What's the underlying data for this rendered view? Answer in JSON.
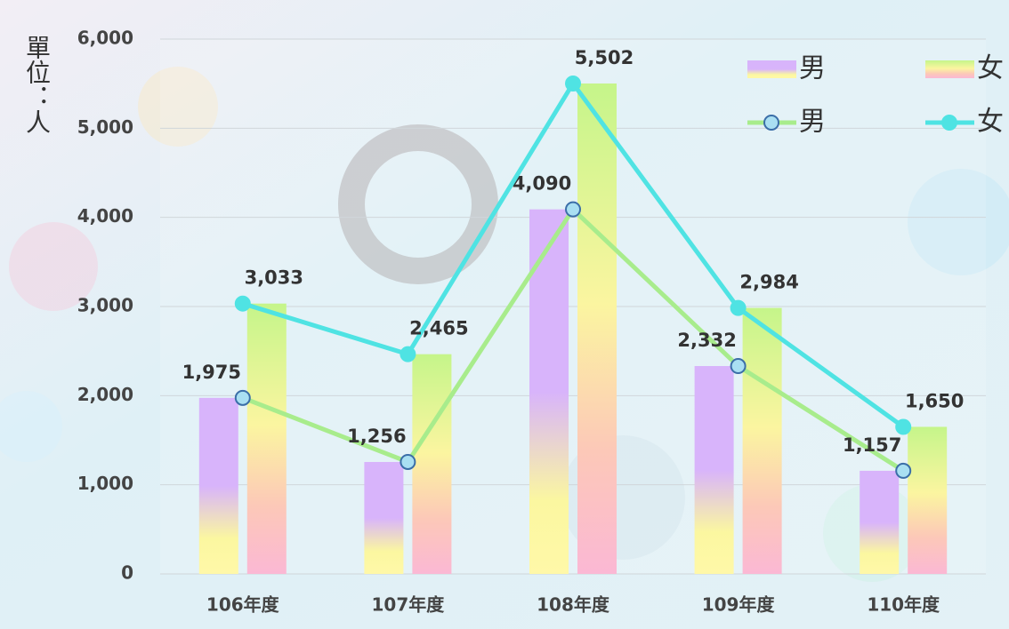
{
  "chart_data": {
    "type": "bar",
    "y_label": "單位：人",
    "categories": [
      "106年度",
      "107年度",
      "108年度",
      "109年度",
      "110年度"
    ],
    "series": [
      {
        "name": "男",
        "type": "bar",
        "color": "#d8b4fb",
        "values": [
          1975,
          1256,
          4090,
          2332,
          1157
        ]
      },
      {
        "name": "女",
        "type": "bar",
        "color": "#c5f58a",
        "values": [
          3033,
          2465,
          5502,
          2984,
          1650
        ]
      },
      {
        "name": "男",
        "type": "line",
        "color": "#a8ec8c",
        "values": [
          1975,
          1256,
          4090,
          2332,
          1157
        ],
        "value_labels": [
          "1,975",
          "1,256",
          "4,090",
          "2,332",
          "1,157"
        ]
      },
      {
        "name": "女",
        "type": "line",
        "color": "#4fe3e3",
        "values": [
          3033,
          2465,
          5502,
          2984,
          1650
        ],
        "value_labels": [
          "3,033",
          "2,465",
          "5,502",
          "2,984",
          "1,650"
        ]
      }
    ],
    "ylim": [
      0,
      6000
    ],
    "yticks": [
      0,
      {
        "value": 1000,
        "label": "1,000"
      },
      {
        "value": 2000,
        "label": "2,000"
      },
      {
        "value": 3000,
        "label": "3,000"
      },
      {
        "value": 4000,
        "label": "4,000"
      },
      {
        "value": 5000,
        "label": "5,000"
      },
      {
        "value": 6000,
        "label": "6,000"
      }
    ],
    "grid": true,
    "legend": "top-right"
  }
}
